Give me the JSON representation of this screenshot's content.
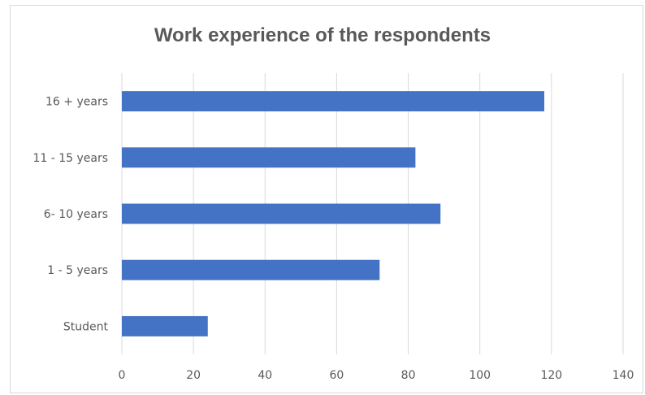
{
  "chart_data": {
    "type": "bar",
    "orientation": "horizontal",
    "title": "Work experience of the respondents",
    "categories": [
      "16 + years",
      "11 - 15 years",
      "6- 10 years",
      "1 - 5 years",
      "Student"
    ],
    "values": [
      118,
      82,
      89,
      72,
      24
    ],
    "xlim": [
      0,
      140
    ],
    "xticks": [
      0,
      20,
      40,
      60,
      80,
      100,
      120,
      140
    ],
    "grid": true,
    "bar_color": "#4472C4",
    "xlabel": "",
    "ylabel": ""
  }
}
